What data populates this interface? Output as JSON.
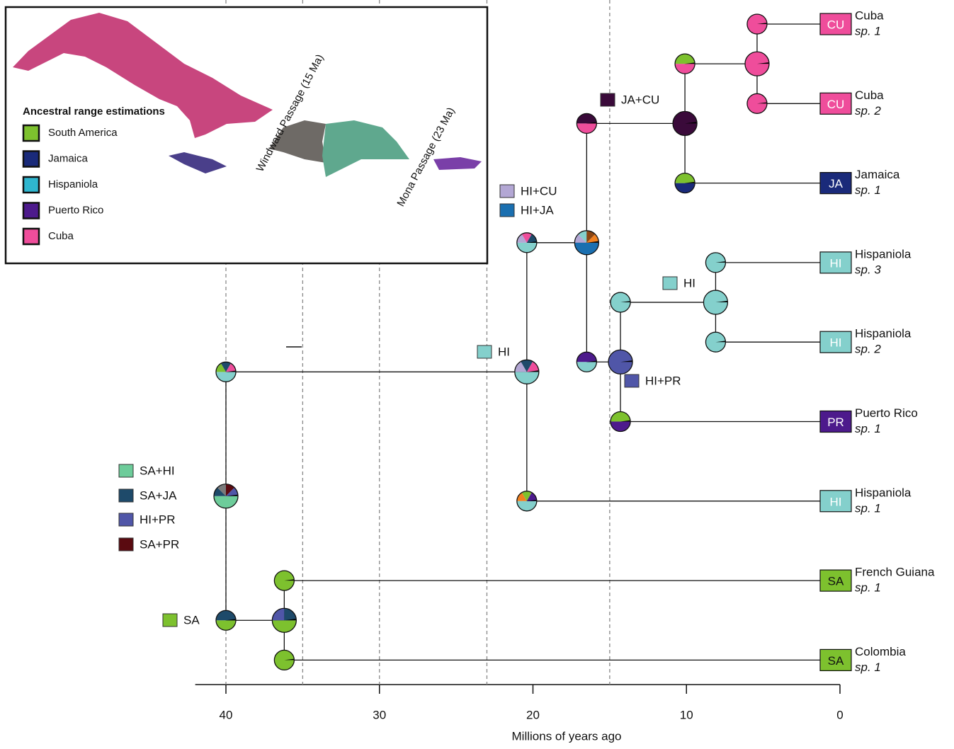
{
  "axis": {
    "label": "Millions of years ago",
    "lim": [
      42,
      0
    ],
    "ticks": [
      40,
      30,
      20,
      10,
      0
    ]
  },
  "dashed_lines": [
    40,
    35,
    30,
    23,
    15
  ],
  "map": {
    "legend_title": "Ancestral range estimations",
    "legend": [
      {
        "label": "South America",
        "color": "#7dc12e"
      },
      {
        "label": "Jamaica",
        "color": "#1a2a7a"
      },
      {
        "label": "Hispaniola",
        "color": "#2fb6cf"
      },
      {
        "label": "Puerto Rico",
        "color": "#4d1a8c"
      },
      {
        "label": "Cuba",
        "color": "#ef4d9b"
      }
    ],
    "passages": [
      "Windward Passage (15 Ma)",
      "Mona Passage (23 Ma)"
    ]
  },
  "range_labels": [
    {
      "label": "JA+CU",
      "color": "#3a0a3a"
    },
    {
      "label": "HI+CU",
      "color": "#b3a7d4"
    },
    {
      "label": "HI+JA",
      "color": "#1a6fb0"
    },
    {
      "label": "HI",
      "color": "#84d0cc"
    },
    {
      "label": "HI",
      "color": "#84d0cc"
    },
    {
      "label": "HI+PR",
      "color": "#5056a8"
    },
    {
      "label": "SA+HI",
      "color": "#6dcc9a"
    },
    {
      "label": "SA+JA",
      "color": "#1e4a6a"
    },
    {
      "label": "HI+PR",
      "color": "#5056a8"
    },
    {
      "label": "SA+PR",
      "color": "#5a0a10"
    },
    {
      "label": "SA",
      "color": "#7dc12e"
    }
  ],
  "tree": {
    "age": 40,
    "pie": [
      "#6dcc9a",
      "#1e4a6a",
      "#7a7a7a",
      "#5a0a10",
      "#5056a8"
    ],
    "children": [
      {
        "stem": [
          "#84d0cc",
          "#7dc12e",
          "#1e4a6a",
          "#ef4d9b"
        ],
        "age": 20.4,
        "pie": [
          "#84d0cc",
          "#b3a7d4",
          "#1e4a6a",
          "#ef4d9b"
        ],
        "children": [
          {
            "stem": [
              "#84d0cc",
              "#b3a7d4",
              "#ef4d9b",
              "#1e4a6a"
            ],
            "age": 16.5,
            "pie": [
              "#1a6fb0",
              "#b3a7d4",
              "#84d0cc",
              "#8b4513",
              "#f08020"
            ],
            "children": [
              {
                "stem": [
                  "#ef4d9b",
                  "#3a0a3a"
                ],
                "age": 10.1,
                "pie": [
                  "#3a0a3a"
                ],
                "children": [
                  {
                    "stem": [
                      "#ef4d9b",
                      "#7dc12e"
                    ],
                    "age": 5.4,
                    "pie": [
                      "#ef4d9b"
                    ],
                    "children": [
                      {
                        "stem": [
                          "#ef4d9b"
                        ],
                        "code": "CU",
                        "name": "Cuba",
                        "species": "sp. 1",
                        "color": "#ef4d9b",
                        "text_color": "#ffffff"
                      },
                      {
                        "stem": [
                          "#ef4d9b"
                        ],
                        "code": "CU",
                        "name": "Cuba",
                        "species": "sp. 2",
                        "color": "#ef4d9b",
                        "text_color": "#ffffff"
                      }
                    ]
                  },
                  {
                    "stem": [
                      "#1a2a7a",
                      "#7dc12e"
                    ],
                    "code": "JA",
                    "name": "Jamaica",
                    "species": "sp. 1",
                    "color": "#1a2a7a",
                    "text_color": "#ffffff"
                  }
                ]
              },
              {
                "stem": [
                  "#84d0cc",
                  "#4d1a8c"
                ],
                "age": 14.3,
                "pie": [
                  "#5056a8"
                ],
                "children": [
                  {
                    "stem": [
                      "#84d0cc"
                    ],
                    "age": 8.1,
                    "pie": [
                      "#84d0cc"
                    ],
                    "children": [
                      {
                        "stem": [
                          "#84d0cc"
                        ],
                        "code": "HI",
                        "name": "Hispaniola",
                        "species": "sp. 3",
                        "color": "#84d0cc",
                        "text_color": "#ffffff"
                      },
                      {
                        "stem": [
                          "#84d0cc"
                        ],
                        "code": "HI",
                        "name": "Hispaniola",
                        "species": "sp. 2",
                        "color": "#84d0cc",
                        "text_color": "#ffffff"
                      }
                    ]
                  },
                  {
                    "stem": [
                      "#4d1a8c",
                      "#7dc12e"
                    ],
                    "code": "PR",
                    "name": "Puerto Rico",
                    "species": "sp. 1",
                    "color": "#4d1a8c",
                    "text_color": "#ffffff"
                  }
                ]
              }
            ]
          },
          {
            "stem": [
              "#84d0cc",
              "#f08020",
              "#7dc12e",
              "#4d1a8c"
            ],
            "code": "HI",
            "name": "Hispaniola",
            "species": "sp. 1",
            "color": "#84d0cc",
            "text_color": "#ffffff"
          }
        ]
      },
      {
        "stem": [
          "#7dc12e",
          "#1e4a6a"
        ],
        "age": 36.2,
        "pie": [
          "#7dc12e",
          "#5056a8",
          "#1e4a6a"
        ],
        "children": [
          {
            "stem": [
              "#7dc12e"
            ],
            "code": "SA",
            "name": "French Guiana",
            "species": "sp. 1",
            "color": "#7dc12e",
            "text_color": "#111111"
          },
          {
            "stem": [
              "#7dc12e"
            ],
            "code": "SA",
            "name": "Colombia",
            "species": "sp. 1",
            "color": "#7dc12e",
            "text_color": "#111111"
          }
        ]
      }
    ]
  }
}
